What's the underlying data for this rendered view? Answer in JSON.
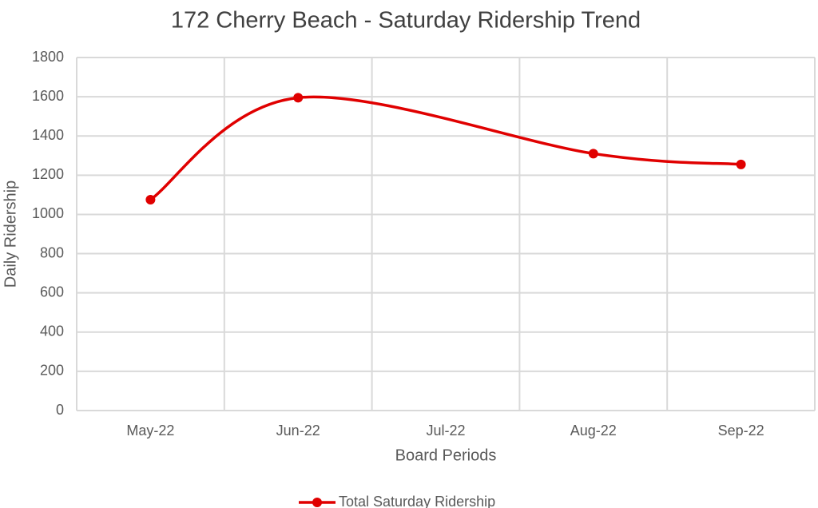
{
  "chart_data": {
    "type": "line",
    "title": "172 Cherry Beach - Saturday Ridership Trend",
    "x_label": "Board Periods",
    "y_label": "Daily Ridership",
    "categories": [
      "May-22",
      "Jun-22",
      "Jul-22",
      "Aug-22",
      "Sep-22"
    ],
    "series": [
      {
        "name": "Total Saturday Ridership",
        "color": "#e00000",
        "values": [
          1075,
          1595,
          null,
          1310,
          1255
        ]
      }
    ],
    "ylim": [
      0,
      1800
    ],
    "yticks": [
      0,
      200,
      400,
      600,
      800,
      1000,
      1200,
      1400,
      1600,
      1800
    ],
    "grid": true,
    "smooth": true,
    "connect_gaps": true,
    "legend": "bottom"
  }
}
